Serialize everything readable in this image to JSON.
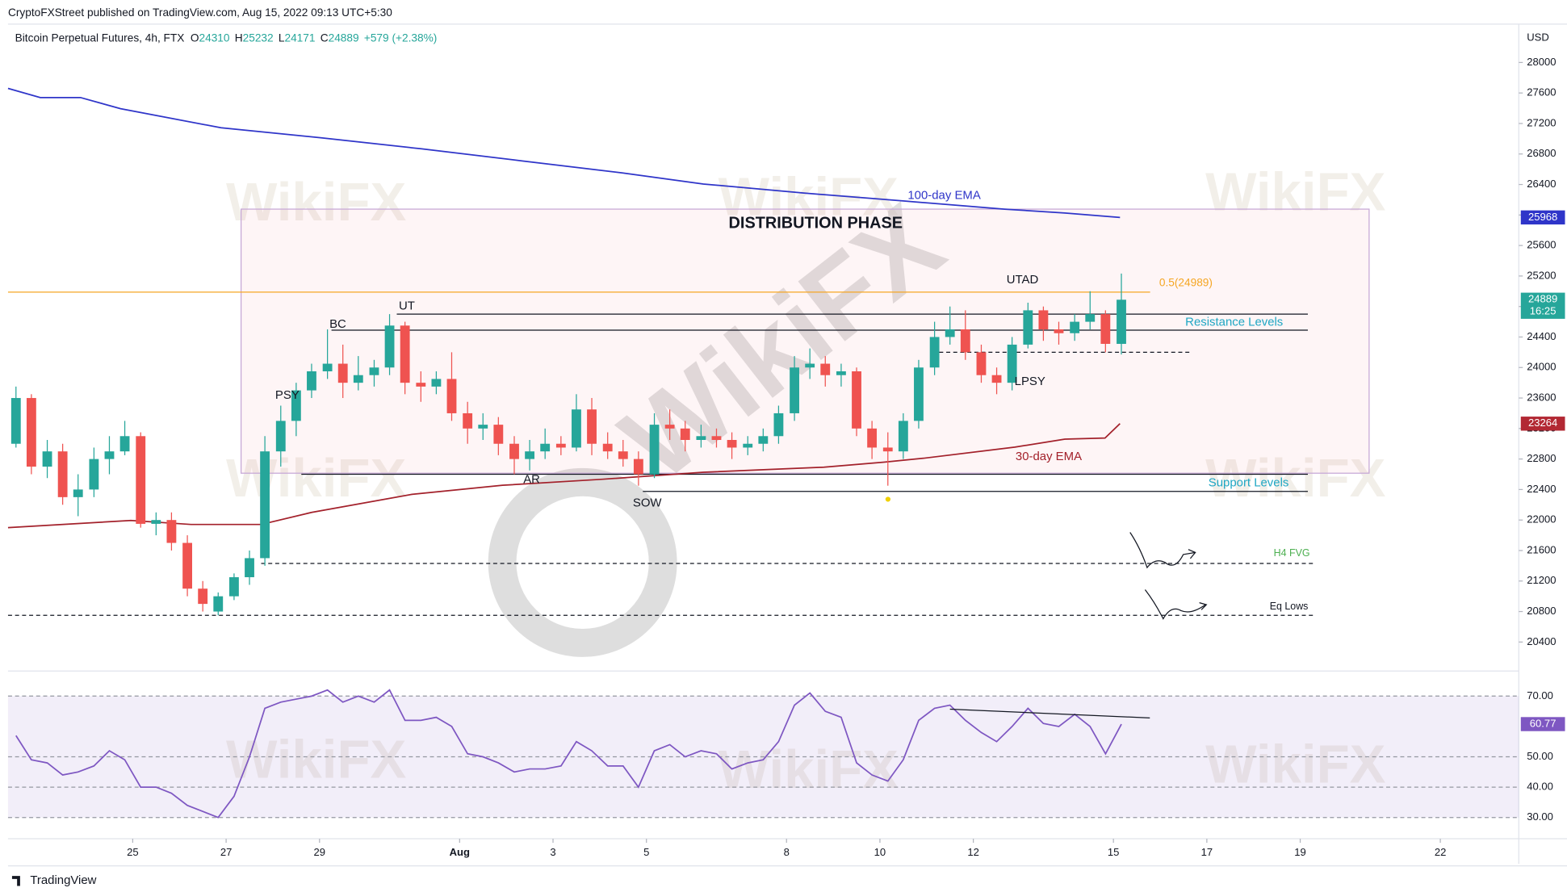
{
  "header": {
    "publisher": "CryptoFXStreet published on TradingView.com, Aug 15, 2022 09:13 UTC+5:30",
    "footer": "TradingView"
  },
  "watermark": "WikiFX",
  "chart_data": {
    "type": "candlestick",
    "symbol": "Bitcoin Perpetual Futures, 4h, FTX",
    "ohlc_letters": [
      "O",
      "H",
      "L",
      "C"
    ],
    "change": "+579 (+2.38%)",
    "currency": "USD",
    "up_color": "#26a69a",
    "down_color": "#ef5350",
    "x": [
      22.5,
      22.83,
      23.17,
      23.5,
      23.83,
      24.17,
      24.5,
      24.83,
      25.17,
      25.5,
      25.83,
      26.17,
      26.5,
      26.83,
      27.17,
      27.5,
      27.83,
      28.17,
      28.5,
      28.83,
      29.17,
      29.5,
      29.83,
      30.17,
      30.5,
      30.83,
      31.17,
      31.5,
      31.83,
      32.17,
      32.5,
      32.83,
      33.17,
      33.5,
      33.83,
      34.17,
      34.5,
      34.83,
      35.17,
      35.5,
      35.83,
      36.17,
      36.5,
      36.83,
      37.17,
      37.5,
      37.83,
      38.17,
      38.5,
      38.83,
      39.17,
      39.5,
      39.83,
      40.17,
      40.5,
      40.83,
      41.17,
      41.5,
      41.83,
      42.17,
      42.5,
      42.83,
      43.17,
      43.5,
      43.83,
      44.17,
      44.5,
      44.83,
      45.17,
      45.5,
      45.83,
      46.17
    ],
    "ohlc": [
      [
        23000,
        23750,
        22950,
        23600
      ],
      [
        23600,
        23650,
        22600,
        22700
      ],
      [
        22700,
        23050,
        22550,
        22900
      ],
      [
        22900,
        23000,
        22200,
        22300
      ],
      [
        22300,
        22600,
        22050,
        22400
      ],
      [
        22400,
        22950,
        22300,
        22800
      ],
      [
        22800,
        23100,
        22600,
        22900
      ],
      [
        22900,
        23300,
        22850,
        23100
      ],
      [
        23100,
        23150,
        21900,
        21950
      ],
      [
        21950,
        22100,
        21800,
        22000
      ],
      [
        22000,
        22100,
        21600,
        21700
      ],
      [
        21700,
        21800,
        21000,
        21100
      ],
      [
        21100,
        21200,
        20800,
        20900
      ],
      [
        20800,
        21050,
        20750,
        21000
      ],
      [
        21000,
        21300,
        20950,
        21250
      ],
      [
        21250,
        21600,
        21150,
        21500
      ],
      [
        21500,
        23100,
        21400,
        22900
      ],
      [
        22900,
        23500,
        22700,
        23300
      ],
      [
        23300,
        23800,
        23100,
        23700
      ],
      [
        23700,
        24050,
        23600,
        23950
      ],
      [
        23950,
        24500,
        23850,
        24050
      ],
      [
        24050,
        24300,
        23600,
        23800
      ],
      [
        23800,
        24150,
        23700,
        23900
      ],
      [
        23900,
        24100,
        23750,
        24000
      ],
      [
        24000,
        24700,
        23900,
        24550
      ],
      [
        24550,
        24600,
        23650,
        23800
      ],
      [
        23800,
        23950,
        23550,
        23750
      ],
      [
        23750,
        23950,
        23650,
        23850
      ],
      [
        23850,
        24200,
        23300,
        23400
      ],
      [
        23400,
        23550,
        23000,
        23200
      ],
      [
        23200,
        23400,
        23050,
        23250
      ],
      [
        23250,
        23350,
        22850,
        23000
      ],
      [
        23000,
        23100,
        22600,
        22800
      ],
      [
        22800,
        23050,
        22650,
        22900
      ],
      [
        22900,
        23200,
        22800,
        23000
      ],
      [
        23000,
        23100,
        22850,
        22950
      ],
      [
        22950,
        23650,
        22900,
        23450
      ],
      [
        23450,
        23600,
        22850,
        23000
      ],
      [
        23000,
        23150,
        22800,
        22900
      ],
      [
        22900,
        23050,
        22700,
        22800
      ],
      [
        22800,
        22900,
        22450,
        22600
      ],
      [
        22600,
        23400,
        22550,
        23250
      ],
      [
        23250,
        23450,
        23050,
        23200
      ],
      [
        23200,
        23300,
        22900,
        23050
      ],
      [
        23050,
        23250,
        22950,
        23100
      ],
      [
        23100,
        23200,
        22950,
        23050
      ],
      [
        23050,
        23150,
        22800,
        22950
      ],
      [
        22950,
        23100,
        22850,
        23000
      ],
      [
        23000,
        23200,
        22900,
        23100
      ],
      [
        23100,
        23500,
        23000,
        23400
      ],
      [
        23400,
        24150,
        23300,
        24000
      ],
      [
        24000,
        24250,
        23850,
        24050
      ],
      [
        24050,
        24150,
        23750,
        23900
      ],
      [
        23900,
        24050,
        23750,
        23950
      ],
      [
        23950,
        24000,
        23100,
        23200
      ],
      [
        23200,
        23300,
        22800,
        22950
      ],
      [
        22950,
        23150,
        22450,
        22900
      ],
      [
        22900,
        23400,
        22800,
        23300
      ],
      [
        23300,
        24100,
        23200,
        24000
      ],
      [
        24000,
        24600,
        23900,
        24400
      ],
      [
        24400,
        24800,
        24300,
        24500
      ],
      [
        24500,
        24750,
        24100,
        24200
      ],
      [
        24200,
        24300,
        23800,
        23900
      ],
      [
        23900,
        24000,
        23650,
        23800
      ],
      [
        23800,
        24400,
        23700,
        24300
      ],
      [
        24300,
        24850,
        24250,
        24750
      ],
      [
        24750,
        24800,
        24350,
        24500
      ],
      [
        24500,
        24600,
        24300,
        24450
      ],
      [
        24450,
        24700,
        24350,
        24600
      ],
      [
        24600,
        25000,
        24500,
        24700
      ],
      [
        24700,
        24750,
        24200,
        24310
      ],
      [
        24310,
        25232,
        24171,
        24889
      ]
    ],
    "series": [
      {
        "name": "100-day EMA",
        "color": "#2f35c9",
        "x": [
          22.33,
          23.02,
          23.88,
          24.74,
          26.89,
          29.04,
          31.19,
          33.34,
          35.49,
          37.22,
          39.37,
          41.52,
          43.67,
          44.96,
          46.14
        ],
        "values": [
          27660,
          27540,
          27540,
          27394,
          27144,
          27012,
          26867,
          26709,
          26551,
          26406,
          26288,
          26183,
          26077,
          26025,
          25968
        ]
      },
      {
        "name": "30-day EMA",
        "color": "#a3212b",
        "x": [
          22.33,
          24.96,
          26.25,
          27.75,
          28.83,
          30.98,
          32.92,
          35.06,
          37.22,
          39.8,
          41.09,
          41.95,
          43.89,
          44.96,
          45.82,
          46.14
        ],
        "values": [
          21900,
          21995,
          21942,
          21942,
          22100,
          22337,
          22455,
          22535,
          22627,
          22693,
          22759,
          22811,
          22956,
          23060,
          23075,
          23264
        ]
      }
    ],
    "levels": [
      {
        "value": 24989,
        "label": "0.5(24989)",
        "color": "#f5a623"
      },
      {
        "value": 24700,
        "color": "#131722"
      },
      {
        "value": 24490,
        "color": "#131722"
      },
      {
        "value": 24200,
        "color": "#131722"
      },
      {
        "value": 22600,
        "color": "#131722"
      },
      {
        "value": 22375,
        "color": "#131722"
      },
      {
        "value": 21430,
        "color": "#131722"
      },
      {
        "value": 20750,
        "color": "#131722"
      }
    ],
    "box": {
      "label": "DISTRIBUTION PHASE",
      "ylim": [
        22614,
        26077
      ]
    },
    "annotations": [
      "UTAD",
      "UT",
      "BC",
      "PSY",
      "AR",
      "SOW",
      "LPSY",
      "Resistance Levels",
      "Support Levels",
      "H4 FVG",
      "Eq Lows"
    ],
    "price_labels": [
      {
        "value": 25968,
        "color": "#2f35c9"
      },
      {
        "value": 24889,
        "time": "16:25",
        "color": "#26a69a"
      },
      {
        "value": 23264,
        "color": "#b22833"
      }
    ],
    "xlim": [
      22.33,
      54.68
    ],
    "ylim": [
      20020,
      28490
    ],
    "xticks": [
      25,
      27,
      29,
      {
        "value": 32,
        "label": "Aug"
      },
      {
        "value": 34,
        "label": "3"
      },
      {
        "value": 36,
        "label": "5"
      },
      {
        "value": 39,
        "label": "8"
      },
      {
        "value": 41,
        "label": "10"
      },
      {
        "value": 43,
        "label": "12"
      },
      {
        "value": 46,
        "label": "15"
      },
      {
        "value": 48,
        "label": "17"
      },
      {
        "value": 50,
        "label": "19"
      },
      {
        "value": 53,
        "label": "22"
      }
    ],
    "yticks": [
      20400,
      20800,
      21200,
      21600,
      22000,
      22400,
      22800,
      23200,
      23600,
      24000,
      24400,
      24800,
      25200,
      25600,
      26000,
      26400,
      26800,
      27200,
      27600,
      28000
    ],
    "rsi": {
      "color": "#7e57c2",
      "values": [
        57,
        49,
        48,
        44,
        45,
        47,
        52,
        49,
        40,
        40,
        38,
        34,
        32,
        30,
        37,
        50,
        66,
        68,
        69,
        70,
        72,
        68,
        70,
        68,
        72,
        62,
        62,
        63,
        60,
        51,
        50,
        48,
        45,
        46,
        46,
        47,
        55,
        52,
        47,
        47,
        40,
        52,
        54,
        50,
        52,
        51,
        46,
        48,
        49,
        55,
        67,
        71,
        65,
        63,
        48,
        44,
        42,
        49,
        62,
        66,
        67,
        62,
        58,
        55,
        60,
        66,
        61,
        60,
        64,
        60,
        51,
        60.77
      ],
      "trendline": {
        "x": [
          42.5,
          46.78
        ],
        "values": [
          65.7,
          62.8
        ]
      },
      "band": [
        30,
        70
      ],
      "ylim": [
        23,
        77.6
      ],
      "yticks": [
        {
          "value": 30,
          "label": "30.00"
        },
        {
          "value": 40,
          "label": "40.00"
        },
        {
          "value": 50,
          "label": "50.00"
        },
        {
          "value": 70,
          "label": "70.00"
        }
      ]
    }
  }
}
